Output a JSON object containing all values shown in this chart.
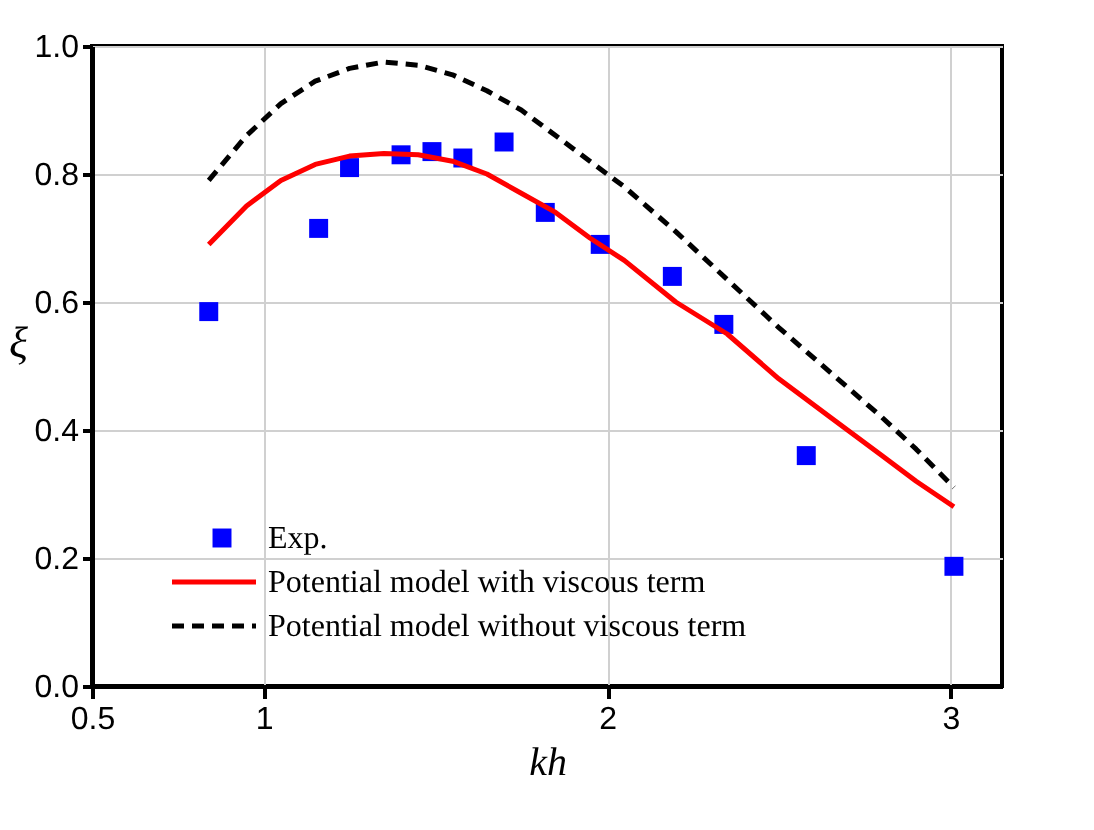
{
  "chart_data": {
    "type": "scatter",
    "xlabel": "kh",
    "ylabel": "ξ",
    "xlim": [
      0.5,
      3.15
    ],
    "ylim": [
      0,
      1.0
    ],
    "xticks": [
      0.5,
      1,
      2,
      3
    ],
    "yticks": [
      {
        "value": 0,
        "label": "0.0"
      },
      0.2,
      0.4,
      0.6,
      0.8,
      {
        "value": 1,
        "label": "1.0"
      }
    ],
    "grid": true,
    "legend": "bottom left",
    "series": [
      {
        "name": "Exp.",
        "marker": "square",
        "color": "#0000ff",
        "x": [
          0.84,
          1.16,
          1.25,
          1.4,
          1.49,
          1.58,
          1.7,
          1.82,
          1.98,
          2.19,
          2.34,
          2.58,
          3.01
        ],
        "values": [
          0.585,
          0.715,
          0.81,
          0.83,
          0.835,
          0.825,
          0.85,
          0.74,
          0.69,
          0.64,
          0.565,
          0.36,
          0.187
        ]
      },
      {
        "name": "Potential model with viscous term",
        "type": "line",
        "line_style": "solid",
        "color": "#ff0000",
        "x": [
          0.84,
          0.95,
          1.05,
          1.15,
          1.25,
          1.35,
          1.45,
          1.55,
          1.65,
          1.75,
          1.85,
          1.95,
          2.05,
          2.2,
          2.35,
          2.5,
          2.65,
          2.8,
          2.9,
          3.01
        ],
        "values": [
          0.69,
          0.75,
          0.79,
          0.815,
          0.828,
          0.832,
          0.83,
          0.82,
          0.8,
          0.77,
          0.74,
          0.7,
          0.665,
          0.6,
          0.55,
          0.48,
          0.42,
          0.36,
          0.32,
          0.28
        ]
      },
      {
        "name": "Potential model without viscous term",
        "type": "line",
        "line_style": "dashed",
        "color": "#000000",
        "x": [
          0.84,
          0.95,
          1.05,
          1.15,
          1.25,
          1.35,
          1.45,
          1.55,
          1.65,
          1.75,
          1.85,
          1.95,
          2.05,
          2.2,
          2.35,
          2.5,
          2.65,
          2.8,
          2.9,
          3.01
        ],
        "values": [
          0.79,
          0.86,
          0.91,
          0.945,
          0.965,
          0.975,
          0.97,
          0.955,
          0.93,
          0.9,
          0.86,
          0.82,
          0.78,
          0.71,
          0.635,
          0.56,
          0.49,
          0.42,
          0.37,
          0.31
        ]
      }
    ]
  }
}
